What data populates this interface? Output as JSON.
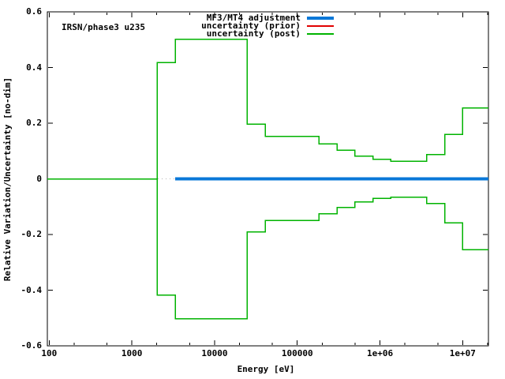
{
  "figure": {
    "background": "#ffffff",
    "border_color": "#000000",
    "annotation": "IRSN/phase3 u235"
  },
  "legend": {
    "position": "top-right-inside",
    "items": [
      {
        "label": "MF3/MT4 adjustment",
        "color": "#0a78d8",
        "sample_thickness": 4
      },
      {
        "label": "uncertainty (prior)",
        "color": "#e10000",
        "sample_thickness": 2
      },
      {
        "label": "uncertainty (post)",
        "color": "#00b300",
        "sample_thickness": 2
      }
    ]
  },
  "chart_data": {
    "type": "line",
    "subtype": "step-histogram",
    "title": "IRSN/phase3 u235",
    "xlabel": "Energy [eV]",
    "ylabel": "Relative Variation/Uncertainty [no-dim]",
    "x_scale": "log",
    "y_scale": "linear",
    "xlim": [
      95,
      20500000
    ],
    "ylim": [
      -0.6,
      0.6
    ],
    "grid": false,
    "zero_axis": {
      "style": "dotted",
      "color": "#b4b4b4"
    },
    "x_major_ticks": [
      {
        "value": 100,
        "label": "100"
      },
      {
        "value": 1000,
        "label": "1000"
      },
      {
        "value": 10000,
        "label": "10000"
      },
      {
        "value": 100000,
        "label": "100000"
      },
      {
        "value": 1000000,
        "label": "1e+06"
      },
      {
        "value": 10000000,
        "label": "1e+07"
      }
    ],
    "x_minor_ticks": [
      200,
      500,
      2000,
      5000,
      20000,
      50000,
      200000,
      500000,
      2000000,
      5000000,
      20000000
    ],
    "y_major_ticks": [
      {
        "value": 0.6,
        "label": "0.6"
      },
      {
        "value": 0.4,
        "label": "0.4"
      },
      {
        "value": 0.2,
        "label": "0.2"
      },
      {
        "value": 0,
        "label": "0"
      },
      {
        "value": -0.2,
        "label": "-0.2"
      },
      {
        "value": -0.4,
        "label": "-0.4"
      },
      {
        "value": -0.6,
        "label": "-0.6"
      }
    ],
    "energy_group_boundaries_eV": [
      95,
      2034,
      3355,
      24800,
      40900,
      183000,
      302000,
      498000,
      821000,
      1350000,
      3680000,
      6070000,
      10000000,
      20500000
    ],
    "series": [
      {
        "name": "MF3/MT4 adjustment",
        "color": "#0a78d8",
        "line_width": 4,
        "boundaries": [
          3355,
          20500000
        ],
        "values": [
          0
        ]
      },
      {
        "name": "uncertainty (prior)",
        "color": "#e10000",
        "line_width": 1.5,
        "upper_values": [
          0,
          0.418,
          0.502,
          0.196,
          0.152,
          0.126,
          0.103,
          0.081,
          0.07,
          0.063,
          0.087,
          0.16,
          0.255
        ],
        "lower_values": [
          0,
          -0.418,
          -0.502,
          -0.19,
          -0.149,
          -0.125,
          -0.103,
          -0.083,
          -0.07,
          -0.066,
          -0.088,
          -0.158,
          -0.254
        ]
      },
      {
        "name": "uncertainty (post)",
        "color": "#00b300",
        "line_width": 1.5,
        "upper_values": [
          0,
          0.418,
          0.502,
          0.196,
          0.152,
          0.126,
          0.103,
          0.081,
          0.07,
          0.063,
          0.087,
          0.16,
          0.255
        ],
        "lower_values": [
          0,
          -0.418,
          -0.502,
          -0.19,
          -0.149,
          -0.125,
          -0.103,
          -0.083,
          -0.07,
          -0.066,
          -0.088,
          -0.158,
          -0.254
        ]
      }
    ]
  }
}
